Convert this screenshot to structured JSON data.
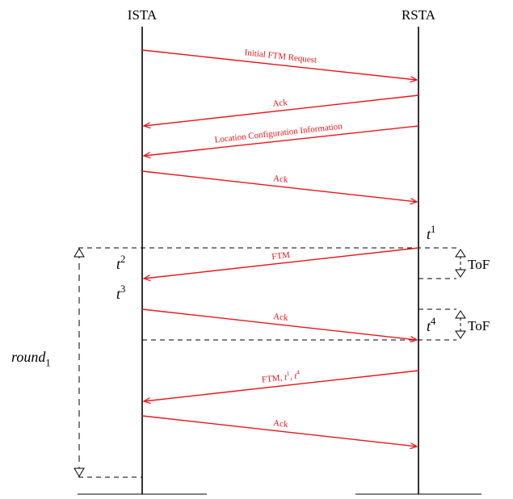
{
  "entities": {
    "left": "ISTA",
    "right": "RSTA"
  },
  "messages": [
    {
      "id": "initial-ftm-request",
      "label": "Initial FTM Request",
      "direction": "right"
    },
    {
      "id": "ack-1",
      "label": "Ack",
      "direction": "left"
    },
    {
      "id": "lci",
      "label": "Location Configuration Information",
      "direction": "left"
    },
    {
      "id": "ack-2",
      "label": "Ack",
      "direction": "right"
    },
    {
      "id": "ftm",
      "label": "FTM",
      "direction": "left"
    },
    {
      "id": "ack-3",
      "label": "Ack",
      "direction": "right"
    },
    {
      "id": "ftm-t1-t4",
      "label": "FTM, t1, t4",
      "direction": "left"
    },
    {
      "id": "ack-4",
      "label": "Ack",
      "direction": "right"
    }
  ],
  "timestamps": {
    "t1": "t1",
    "t2": "t2",
    "t3": "t3",
    "t4": "t4"
  },
  "annotations": {
    "tof_1": "ToF",
    "tof_2": "ToF",
    "round": "round1"
  },
  "colors": {
    "message": "#e8141c",
    "line": "#000000"
  }
}
